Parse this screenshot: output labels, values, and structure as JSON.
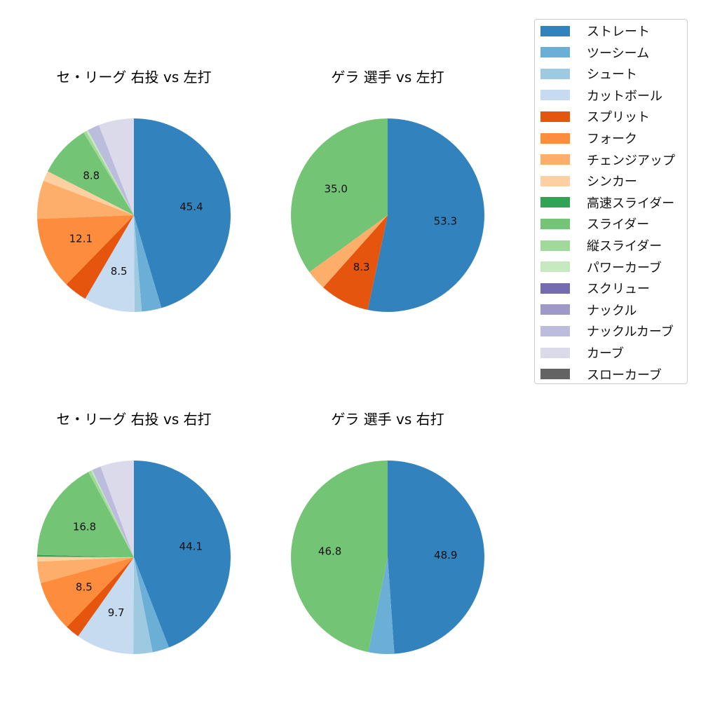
{
  "chart_data": [
    {
      "type": "pie",
      "title": "セ・リーグ 右投 vs 左打",
      "categories": [
        "ストレート",
        "ツーシーム",
        "シュート",
        "カットボール",
        "スプリット",
        "フォーク",
        "チェンジアップ",
        "シンカー",
        "スライダー",
        "縦スライダー",
        "パワーカーブ",
        "ナックルカーブ",
        "カーブ"
      ],
      "values": [
        45.4,
        3.3,
        1.2,
        8.5,
        3.9,
        12.1,
        6.4,
        1.7,
        8.8,
        0.5,
        0.3,
        2.0,
        5.9
      ]
    },
    {
      "type": "pie",
      "title": "ゲラ 選手 vs 左打",
      "categories": [
        "ストレート",
        "スプリット",
        "チェンジアップ",
        "スライダー"
      ],
      "values": [
        53.3,
        8.3,
        3.4,
        35.0
      ]
    },
    {
      "type": "pie",
      "title": "セ・リーグ 右投 vs 右打",
      "categories": [
        "ストレート",
        "ツーシーム",
        "シュート",
        "カットボール",
        "スプリット",
        "フォーク",
        "チェンジアップ",
        "シンカー",
        "高速スライダー",
        "スライダー",
        "縦スライダー",
        "パワーカーブ",
        "ナックルカーブ",
        "カーブ"
      ],
      "values": [
        44.1,
        2.8,
        3.2,
        9.7,
        2.4,
        8.5,
        3.6,
        0.8,
        0.3,
        16.8,
        0.5,
        0.2,
        1.5,
        5.6
      ]
    },
    {
      "type": "pie",
      "title": "ゲラ 選手 vs 右打",
      "categories": [
        "ストレート",
        "ツーシーム",
        "スライダー"
      ],
      "values": [
        48.9,
        4.3,
        46.8
      ]
    }
  ],
  "legend": {
    "placement": "top-right",
    "items": [
      {
        "label": "ストレート",
        "color": "#3182bd"
      },
      {
        "label": "ツーシーム",
        "color": "#6baed6"
      },
      {
        "label": "シュート",
        "color": "#9ecae1"
      },
      {
        "label": "カットボール",
        "color": "#c6dbef"
      },
      {
        "label": "スプリット",
        "color": "#e6550d"
      },
      {
        "label": "フォーク",
        "color": "#fd8d3c"
      },
      {
        "label": "チェンジアップ",
        "color": "#fdae6b"
      },
      {
        "label": "シンカー",
        "color": "#fdd0a2"
      },
      {
        "label": "高速スライダー",
        "color": "#31a354"
      },
      {
        "label": "スライダー",
        "color": "#74c476"
      },
      {
        "label": "縦スライダー",
        "color": "#a1d99b"
      },
      {
        "label": "パワーカーブ",
        "color": "#c7e9c0"
      },
      {
        "label": "スクリュー",
        "color": "#756bb1"
      },
      {
        "label": "ナックル",
        "color": "#9e9ac8"
      },
      {
        "label": "ナックルカーブ",
        "color": "#bcbddc"
      },
      {
        "label": "カーブ",
        "color": "#dadaeb"
      },
      {
        "label": "スローカーブ",
        "color": "#636363"
      }
    ]
  }
}
